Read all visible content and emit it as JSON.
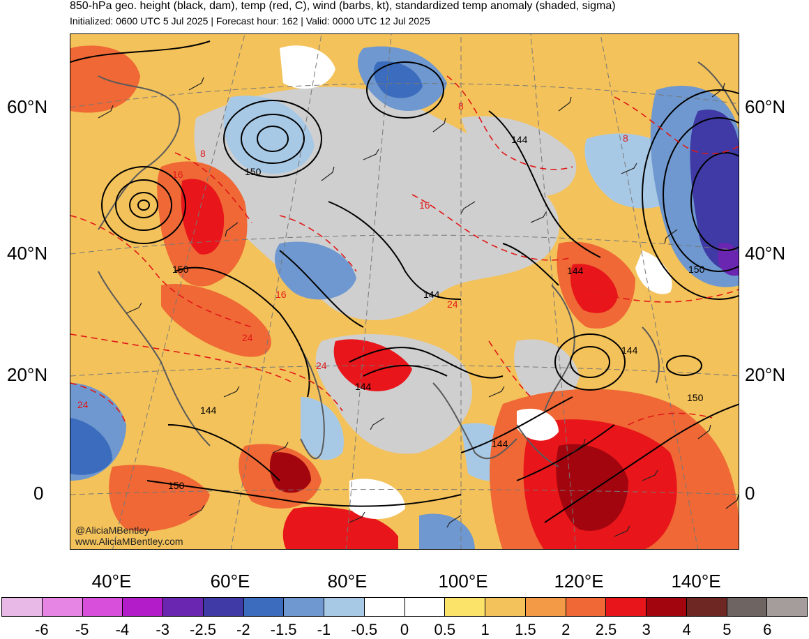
{
  "header": {
    "title": "850-hPa geo. height (black, dam), temp (red, C), wind (barbs, kt), standardized temp anomaly (shaded, sigma)",
    "subtitle": "Initialized: 0600 UTC 5 Jul 2025 | Forecast hour: 162 | Valid: 0000 UTC 12 Jul 2025"
  },
  "axes": {
    "lat_labels": [
      "60°N",
      "40°N",
      "20°N",
      "0"
    ],
    "lon_labels": [
      "40°E",
      "60°E",
      "80°E",
      "100°E",
      "120°E",
      "140°E"
    ]
  },
  "contour_labels": {
    "height": [
      "150",
      "144",
      "150",
      "144",
      "144",
      "144",
      "144",
      "150",
      "144",
      "144",
      "150",
      "150"
    ],
    "temp": [
      "8",
      "8",
      "8",
      "16",
      "16",
      "16",
      "24",
      "24",
      "24",
      "24"
    ]
  },
  "credit": {
    "line1": "@AliciaMBentley",
    "line2": "www.AliciaMBentley.com"
  },
  "colorbar": {
    "colors": [
      "#e8b9e6",
      "#e685e4",
      "#d84fdc",
      "#b21dc9",
      "#6a26b0",
      "#3f3aa5",
      "#3b6cbd",
      "#6e98cf",
      "#a8c9e6",
      "#ffffff",
      "#ffffff",
      "#fbe36a",
      "#f4c25a",
      "#f29a45",
      "#ef6835",
      "#e8161a",
      "#a3050f",
      "#6f2724",
      "#6e6462",
      "#a59d9b"
    ],
    "ticks": [
      "-6",
      "-5",
      "-4",
      "-3",
      "-2.5",
      "-2",
      "-1.5",
      "-1",
      "-0.5",
      "0",
      "0.5",
      "1",
      "1.5",
      "2",
      "2.5",
      "3",
      "4",
      "5",
      "6"
    ]
  }
}
